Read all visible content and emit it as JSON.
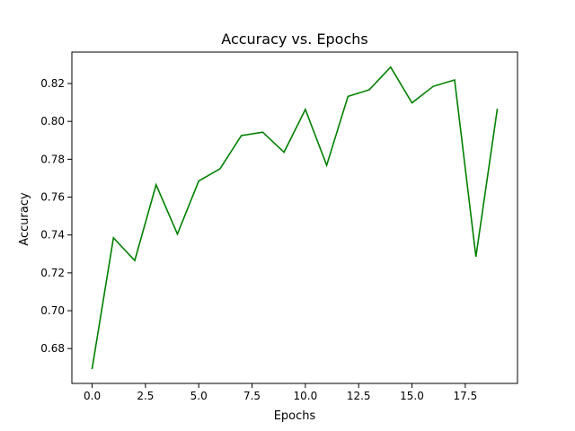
{
  "chart_data": {
    "type": "line",
    "title": "Accuracy vs. Epochs",
    "xlabel": "Epochs",
    "ylabel": "Accuracy",
    "x": [
      0,
      1,
      2,
      3,
      4,
      5,
      6,
      7,
      8,
      9,
      10,
      11,
      12,
      13,
      14,
      15,
      16,
      17,
      18,
      19
    ],
    "series": [
      {
        "color": "#008000",
        "values": [
          0.6695,
          0.7385,
          0.7265,
          0.7665,
          0.7405,
          0.7685,
          0.775,
          0.7925,
          0.7943,
          0.7837,
          0.8063,
          0.7768,
          0.8132,
          0.8167,
          0.8287,
          0.8098,
          0.8185,
          0.8219,
          0.7285,
          0.8063
        ]
      }
    ],
    "xlim": [
      -0.95,
      19.95
    ],
    "ylim": [
      0.6616,
      0.8366
    ],
    "xticks": [
      0,
      2.5,
      5,
      7.5,
      10,
      12.5,
      15,
      17.5
    ],
    "xtick_labels": [
      "0.0",
      "2.5",
      "5.0",
      "7.5",
      "10.0",
      "12.5",
      "15.0",
      "17.5"
    ],
    "yticks": [
      0.68,
      0.7,
      0.72,
      0.74,
      0.76,
      0.78,
      0.8,
      0.82
    ],
    "ytick_labels": [
      "0.68",
      "0.70",
      "0.72",
      "0.74",
      "0.76",
      "0.78",
      "0.80",
      "0.82"
    ],
    "grid": false,
    "legend": false
  }
}
